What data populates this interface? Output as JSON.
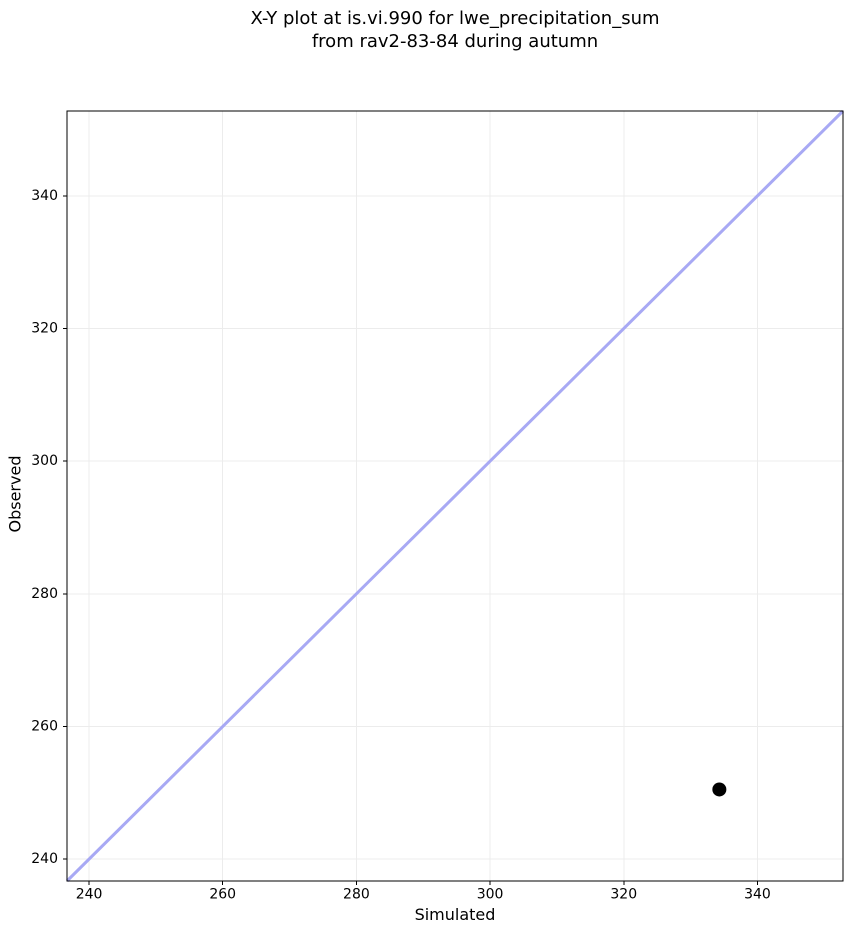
{
  "figure": {
    "background_color": "#ffffff"
  },
  "chart_data": {
    "type": "scatter",
    "title": "X-Y plot at is.vi.990 for lwe_precipitation_sum\nfrom rav2-83-84 during autumn",
    "title_lines": [
      "X-Y plot at is.vi.990 for lwe_precipitation_sum",
      "from rav2-83-84 during autumn"
    ],
    "xlabel": "Simulated",
    "ylabel": "Observed",
    "xlim": [
      236.7,
      352.8
    ],
    "ylim": [
      236.7,
      352.8
    ],
    "xticks": [
      240,
      260,
      280,
      300,
      320,
      340
    ],
    "yticks": [
      240,
      260,
      280,
      300,
      320,
      340
    ],
    "grid": true,
    "legend": false,
    "series": [
      {
        "name": "one-to-one-line",
        "type": "line",
        "color": "#a8a9f4",
        "line_width": 3,
        "x": [
          236.7,
          352.8
        ],
        "y": [
          236.7,
          352.8
        ]
      },
      {
        "name": "observed-vs-simulated-point",
        "type": "scatter",
        "color": "#000000",
        "marker": "circle",
        "marker_radius": 7,
        "x": [
          334.3
        ],
        "y": [
          250.5
        ]
      }
    ],
    "colors": {
      "grid": "#ececec",
      "spine": "#000000",
      "tick": "#000000",
      "text": "#000000",
      "background": "#ffffff"
    }
  }
}
